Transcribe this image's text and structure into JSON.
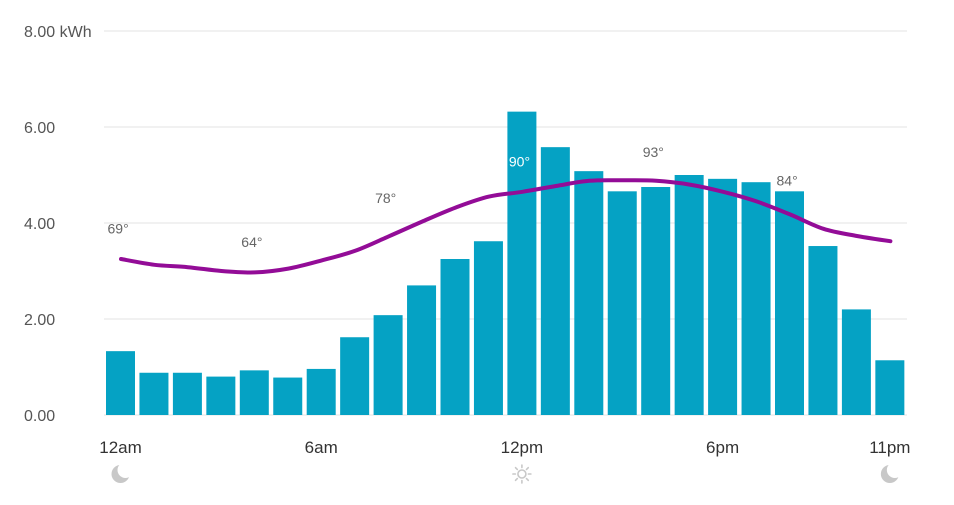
{
  "chart_data": {
    "type": "bar",
    "y_axis": {
      "unit": "kWh",
      "ylim": [
        0,
        8
      ],
      "ticks": [
        "0.00",
        "2.00",
        "4.00",
        "6.00",
        "8.00 kWh"
      ],
      "tick_values": [
        0,
        2,
        4,
        6,
        8
      ]
    },
    "x_axis": {
      "tick_labels": [
        "12am",
        "6am",
        "12pm",
        "6pm",
        "11pm"
      ],
      "tick_hours": [
        0,
        6,
        12,
        18,
        23
      ]
    },
    "hours": [
      0,
      1,
      2,
      3,
      4,
      5,
      6,
      7,
      8,
      9,
      10,
      11,
      12,
      13,
      14,
      15,
      16,
      17,
      18,
      19,
      20,
      21,
      22,
      23
    ],
    "series": [
      {
        "type": "bar",
        "values": [
          1.33,
          0.88,
          0.88,
          0.8,
          0.93,
          0.78,
          0.96,
          1.62,
          2.08,
          2.7,
          3.25,
          3.62,
          6.32,
          5.58,
          5.08,
          4.66,
          4.75,
          5.0,
          4.92,
          4.85,
          4.66,
          3.52,
          2.2,
          1.14
        ]
      }
    ],
    "temperature": {
      "line_kwh_levels": [
        3.25,
        3.13,
        3.08,
        3.0,
        2.97,
        3.05,
        3.22,
        3.42,
        3.72,
        4.03,
        4.32,
        4.55,
        4.65,
        4.77,
        4.88,
        4.89,
        4.88,
        4.8,
        4.65,
        4.45,
        4.18,
        3.88,
        3.73,
        3.62
      ],
      "labels": [
        {
          "hour": 0,
          "text": "69°",
          "kwh": 3.78,
          "highlight": false
        },
        {
          "hour": 4,
          "text": "64°",
          "kwh": 3.5,
          "highlight": false
        },
        {
          "hour": 8,
          "text": "78°",
          "kwh": 4.42,
          "highlight": false
        },
        {
          "hour": 12,
          "text": "90°",
          "kwh": 5.18,
          "highlight": true
        },
        {
          "hour": 16,
          "text": "93°",
          "kwh": 5.38,
          "highlight": false
        },
        {
          "hour": 20,
          "text": "84°",
          "kwh": 4.78,
          "highlight": false
        }
      ]
    },
    "day_icons": [
      {
        "hour": 0,
        "icon": "moon-icon"
      },
      {
        "hour": 12,
        "icon": "sun-icon"
      },
      {
        "hour": 23,
        "icon": "moon-icon"
      }
    ],
    "grid": true,
    "legend": "none",
    "colors": {
      "bar": "#05a2c4",
      "temp_line": "#930c97",
      "grid": "#e3e3e3",
      "icon": "#c8c8c8"
    }
  }
}
